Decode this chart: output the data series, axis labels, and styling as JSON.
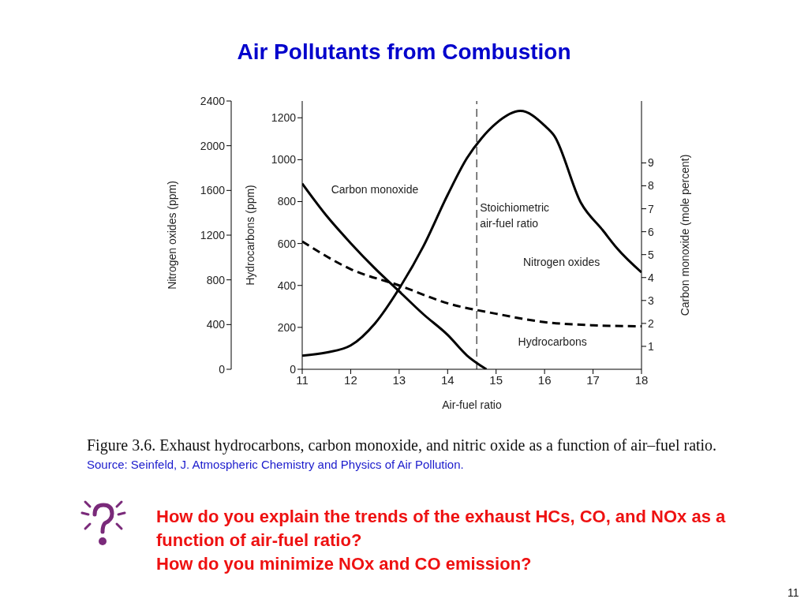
{
  "chart_data": {
    "type": "line",
    "title": "Air Pollutants from Combustion",
    "xlabel": "Air-fuel ratio",
    "ylabel": "Nitrogen oxides (ppm)",
    "y2label": "Hydrocarbons (ppm)",
    "y3label": "Carbon monoxide (mole percent)",
    "xlim": [
      11,
      18
    ],
    "xticks": [
      11,
      12,
      13,
      14,
      15,
      16,
      17,
      18
    ],
    "ylim": [
      0,
      2400
    ],
    "yticks": [
      0,
      400,
      800,
      1200,
      1600,
      2000,
      2400
    ],
    "y2lim": [
      0,
      1280
    ],
    "y2ticks": [
      0,
      200,
      400,
      600,
      800,
      1000,
      1200
    ],
    "y3lim": [
      0,
      11.7
    ],
    "y3ticks": [
      1,
      2,
      3,
      4,
      5,
      6,
      7,
      8,
      9
    ],
    "grid": false,
    "marker": "none",
    "series": [
      {
        "name": "Carbon monoxide",
        "color": "#000000",
        "axis": "y3",
        "line_style": "solid",
        "x": [
          11,
          11.5,
          12,
          12.5,
          13,
          13.5,
          14,
          14.4,
          14.8
        ],
        "values": [
          8.1,
          6.7,
          5.5,
          4.4,
          3.4,
          2.4,
          1.5,
          0.6,
          0
        ]
      },
      {
        "name": "Nitrogen oxides",
        "color": "#000000",
        "axis": "y",
        "line_style": "solid",
        "x": [
          11,
          11.5,
          12,
          12.5,
          13,
          13.5,
          14,
          14.4,
          14.7,
          15,
          15.5,
          16,
          16.2,
          16.75,
          17.2,
          17.5,
          18
        ],
        "values": [
          122,
          150,
          213,
          410,
          722,
          1100,
          1560,
          1890,
          2067,
          2200,
          2311,
          2180,
          2089,
          1489,
          1244,
          1080,
          867
        ]
      },
      {
        "name": "Hydrocarbons",
        "color": "#000000",
        "axis": "y2",
        "line_style": "dashed",
        "x": [
          11,
          12,
          13,
          14,
          15,
          16,
          17,
          18
        ],
        "values": [
          610,
          478,
          400,
          315,
          265,
          225,
          210,
          205
        ]
      }
    ],
    "ref_lines": [
      {
        "axis": "x",
        "value": 14.6,
        "label": "Stoichiometric air-fuel ratio",
        "color": "#000000",
        "line_style": "dashed"
      }
    ],
    "annotations": [
      "Figure 3.6. Exhaust hydrocarbons, carbon monoxide, and nitric oxide as a function of air–fuel ratio.",
      "Source: Seinfeld, J. Atmospheric Chemistry and Physics of Air Pollution.",
      "How do you explain the trends of the exhaust HCs, CO, and NOx as a function of air-fuel ratio?",
      "How do you minimize NOx and CO emission?",
      "11"
    ]
  }
}
